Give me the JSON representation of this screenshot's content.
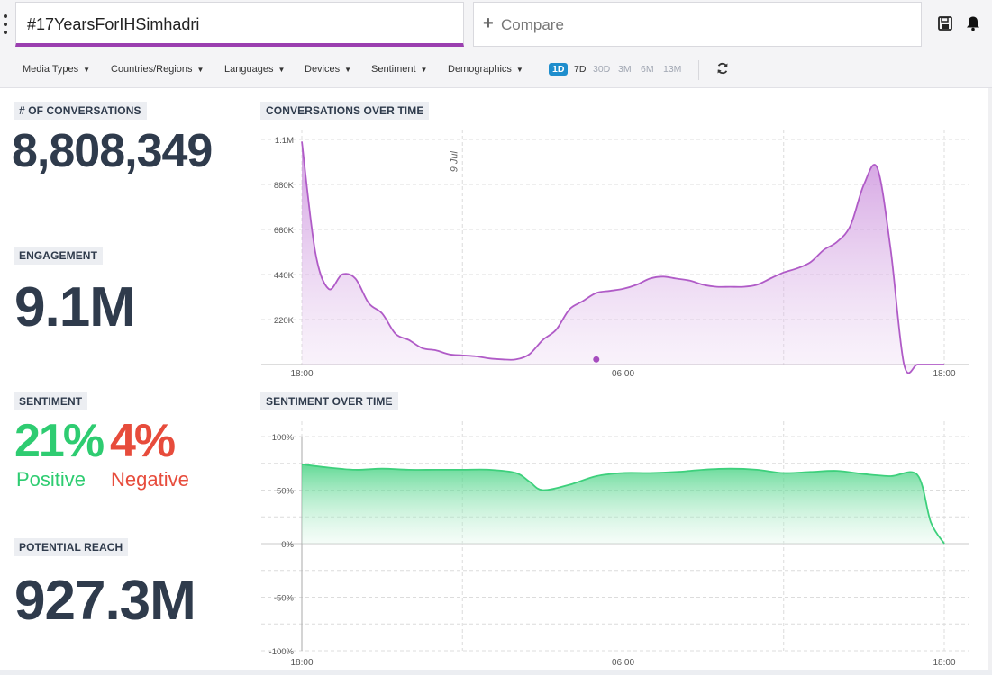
{
  "header": {
    "query": "#17YearsForIHSimhadri",
    "compare_label": "Compare"
  },
  "filters": [
    {
      "label": "Media Types"
    },
    {
      "label": "Countries/Regions"
    },
    {
      "label": "Languages"
    },
    {
      "label": "Devices"
    },
    {
      "label": "Sentiment"
    },
    {
      "label": "Demographics"
    }
  ],
  "ranges": [
    {
      "label": "1D",
      "active": true
    },
    {
      "label": "7D",
      "active": false
    },
    {
      "label": "30D",
      "active": false
    },
    {
      "label": "3M",
      "active": false
    },
    {
      "label": "6M",
      "active": false
    },
    {
      "label": "13M",
      "active": false
    }
  ],
  "metrics": {
    "conversations": {
      "label": "# OF CONVERSATIONS",
      "value": "8,808,349"
    },
    "engagement": {
      "label": "ENGAGEMENT",
      "value": "9.1M"
    },
    "sentiment": {
      "label": "SENTIMENT",
      "positive_value": "21%",
      "positive_label": "Positive",
      "negative_value": "4%",
      "negative_label": "Negative"
    },
    "reach": {
      "label": "POTENTIAL REACH",
      "value": "927.3M"
    }
  },
  "colors": {
    "accent": "#9b3fb0",
    "conversations_line": "#b05bc7",
    "sentiment_line": "#3dd07c",
    "positive": "#2ecc71",
    "negative": "#e74c3c",
    "active_range": "#1f8ecd"
  },
  "icons": {
    "save": "save-icon",
    "bell": "bell-icon",
    "refresh": "refresh-icon",
    "menu": "menu-dots-icon"
  },
  "chart_data": [
    {
      "type": "area",
      "title": "CONVERSATIONS OVER TIME",
      "x_ticks": [
        "18:00",
        "06:00",
        "18:00"
      ],
      "y_ticks": [
        "220K",
        "440K",
        "660K",
        "880K",
        "1.1M"
      ],
      "ylim": [
        0,
        1100000
      ],
      "xlim": [
        0,
        24
      ],
      "annotation": "9 Jul",
      "annotation_x": 6,
      "marker": {
        "x": 11,
        "y": 25000
      },
      "series": [
        {
          "x": [
            0,
            0.5,
            1,
            1.5,
            2,
            2.5,
            3,
            3.5,
            4,
            4.5,
            5,
            5.5,
            6,
            6.5,
            7,
            7.5,
            8,
            8.5,
            9,
            9.5,
            10,
            10.5,
            11,
            11.5,
            12,
            12.5,
            13,
            13.5,
            14,
            14.5,
            15,
            15.5,
            16,
            16.5,
            17,
            17.5,
            18,
            18.5,
            19,
            19.5,
            20,
            20.5,
            21,
            21.5,
            22,
            22.5,
            23,
            23.5,
            24
          ],
          "values": [
            1090000,
            550000,
            370000,
            440000,
            420000,
            300000,
            250000,
            150000,
            120000,
            80000,
            70000,
            50000,
            45000,
            40000,
            30000,
            25000,
            25000,
            50000,
            120000,
            170000,
            270000,
            310000,
            350000,
            360000,
            370000,
            390000,
            420000,
            430000,
            420000,
            410000,
            390000,
            380000,
            380000,
            380000,
            390000,
            420000,
            450000,
            470000,
            500000,
            560000,
            600000,
            680000,
            880000,
            960000,
            560000,
            0,
            0,
            0,
            0
          ]
        }
      ]
    },
    {
      "type": "area",
      "title": "SENTIMENT OVER TIME",
      "x_ticks": [
        "18:00",
        "06:00",
        "18:00"
      ],
      "y_ticks": [
        "100%",
        "50%",
        "0%",
        "-50%",
        "-100%"
      ],
      "ylim": [
        -100,
        100
      ],
      "xlim": [
        0,
        24
      ],
      "series": [
        {
          "x": [
            0,
            1,
            2,
            3,
            4,
            5,
            6,
            7,
            8,
            8.5,
            9,
            10,
            11,
            12,
            13,
            14,
            15,
            16,
            17,
            18,
            19,
            20,
            21,
            22,
            23,
            23.5,
            24
          ],
          "values": [
            74,
            71,
            69,
            70,
            69,
            69,
            69,
            69,
            66,
            58,
            50,
            55,
            63,
            66,
            66,
            67,
            69,
            70,
            69,
            66,
            67,
            68,
            65,
            63,
            64,
            20,
            0
          ]
        }
      ]
    }
  ]
}
